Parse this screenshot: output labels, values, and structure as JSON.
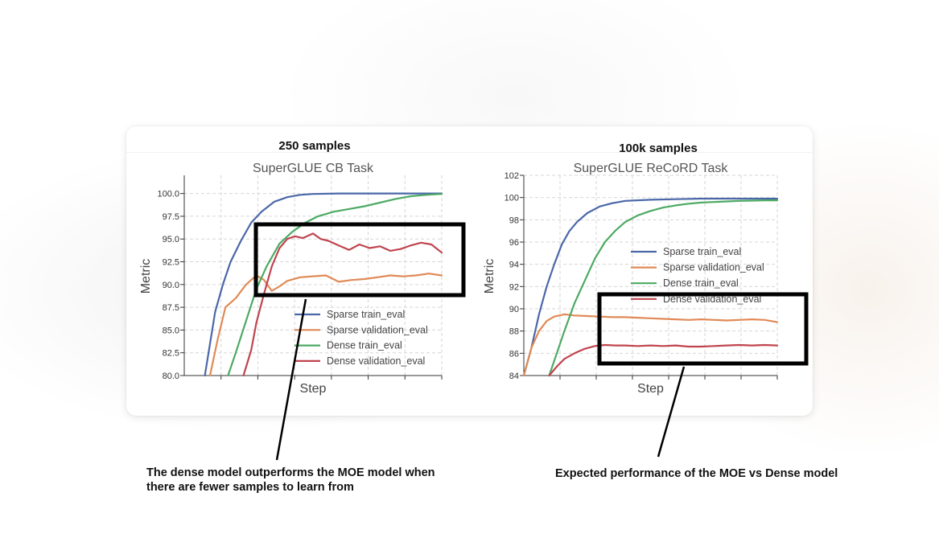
{
  "panels": [
    {
      "heading": "250 samples"
    },
    {
      "heading": "100k samples"
    }
  ],
  "captions": {
    "left": [
      "The dense model outperforms the MOE model when",
      "there are fewer samples to learn from"
    ],
    "right": "Expected performance of the MOE vs Dense model"
  },
  "colors": {
    "sparse_train": "#4a67a8",
    "sparse_validation": "#e08a56",
    "dense_train": "#4caa63",
    "dense_validation": "#c0444e",
    "highlight_box": "#000000"
  },
  "chart_data": [
    {
      "type": "line",
      "title": "SuperGLUE CB Task",
      "xlabel": "Step",
      "ylabel": "Metric",
      "ylim": [
        80.0,
        102.0
      ],
      "yticks": [
        "80.0",
        "82.5",
        "85.0",
        "87.5",
        "90.0",
        "92.5",
        "95.0",
        "97.5",
        "100.0"
      ],
      "xlim": [
        0,
        1
      ],
      "grid": true,
      "legend": "bottom-right",
      "series": [
        {
          "name": "Sparse train_eval",
          "color_key": "sparse_train",
          "x": [
            0.08,
            0.1,
            0.12,
            0.15,
            0.18,
            0.22,
            0.26,
            0.3,
            0.35,
            0.4,
            0.45,
            0.5,
            0.6,
            0.7,
            0.8,
            0.9,
            1.0
          ],
          "y": [
            80.0,
            83.5,
            87.0,
            90.0,
            92.5,
            94.8,
            96.8,
            98.0,
            99.1,
            99.6,
            99.85,
            99.95,
            100.0,
            100.0,
            100.0,
            100.0,
            100.0
          ]
        },
        {
          "name": "Sparse validation_eval",
          "color_key": "sparse_validation",
          "x": [
            0.1,
            0.13,
            0.16,
            0.2,
            0.24,
            0.28,
            0.31,
            0.34,
            0.37,
            0.4,
            0.45,
            0.5,
            0.55,
            0.6,
            0.65,
            0.7,
            0.75,
            0.8,
            0.85,
            0.9,
            0.95,
            1.0
          ],
          "y": [
            80.0,
            84.0,
            87.5,
            88.5,
            90.0,
            91.0,
            90.5,
            89.3,
            89.8,
            90.4,
            90.8,
            90.9,
            91.0,
            90.3,
            90.5,
            90.6,
            90.8,
            91.0,
            90.9,
            91.0,
            91.2,
            91.0
          ]
        },
        {
          "name": "Dense train_eval",
          "color_key": "dense_train",
          "x": [
            0.17,
            0.2,
            0.24,
            0.28,
            0.32,
            0.37,
            0.42,
            0.47,
            0.52,
            0.58,
            0.64,
            0.7,
            0.76,
            0.82,
            0.88,
            0.94,
            1.0
          ],
          "y": [
            80.0,
            82.5,
            86.0,
            89.5,
            92.0,
            94.5,
            95.8,
            96.8,
            97.5,
            98.0,
            98.3,
            98.6,
            99.0,
            99.4,
            99.7,
            99.85,
            99.95
          ]
        },
        {
          "name": "Dense validation_eval",
          "color_key": "dense_validation",
          "x": [
            0.23,
            0.26,
            0.28,
            0.31,
            0.34,
            0.37,
            0.4,
            0.43,
            0.46,
            0.5,
            0.53,
            0.56,
            0.6,
            0.64,
            0.68,
            0.72,
            0.76,
            0.8,
            0.84,
            0.88,
            0.92,
            0.96,
            1.0
          ],
          "y": [
            80.0,
            82.8,
            85.8,
            89.0,
            92.0,
            94.0,
            95.0,
            95.3,
            95.1,
            95.6,
            95.0,
            94.8,
            94.3,
            93.8,
            94.4,
            94.0,
            94.2,
            93.7,
            93.9,
            94.3,
            94.6,
            94.4,
            93.5
          ]
        }
      ]
    },
    {
      "type": "line",
      "title": "SuperGLUE ReCoRD Task",
      "xlabel": "Step",
      "ylabel": "Metric",
      "ylim": [
        84,
        102
      ],
      "yticks": [
        "84",
        "86",
        "88",
        "90",
        "92",
        "94",
        "96",
        "98",
        "100",
        "102"
      ],
      "xlim": [
        0,
        1
      ],
      "grid": true,
      "legend": "center-right",
      "series": [
        {
          "name": "Sparse train_eval",
          "color_key": "sparse_train",
          "x": [
            0.0,
            0.03,
            0.06,
            0.09,
            0.12,
            0.15,
            0.18,
            0.21,
            0.25,
            0.3,
            0.35,
            0.4,
            0.5,
            0.6,
            0.7,
            0.8,
            0.9,
            1.0
          ],
          "y": [
            84.0,
            86.5,
            89.5,
            92.0,
            94.0,
            95.8,
            97.0,
            97.8,
            98.6,
            99.2,
            99.5,
            99.7,
            99.8,
            99.85,
            99.9,
            99.9,
            99.9,
            99.9
          ]
        },
        {
          "name": "Sparse validation_eval",
          "color_key": "sparse_validation",
          "x": [
            0.0,
            0.03,
            0.06,
            0.09,
            0.12,
            0.16,
            0.2,
            0.25,
            0.3,
            0.35,
            0.4,
            0.45,
            0.5,
            0.55,
            0.6,
            0.65,
            0.7,
            0.75,
            0.8,
            0.85,
            0.9,
            0.95,
            1.0
          ],
          "y": [
            84.0,
            86.5,
            88.0,
            88.9,
            89.3,
            89.5,
            89.4,
            89.35,
            89.3,
            89.25,
            89.25,
            89.2,
            89.15,
            89.1,
            89.05,
            89.0,
            89.05,
            89.0,
            88.95,
            89.0,
            89.05,
            89.0,
            88.8
          ]
        },
        {
          "name": "Dense train_eval",
          "color_key": "dense_train",
          "x": [
            0.1,
            0.13,
            0.16,
            0.2,
            0.24,
            0.28,
            0.32,
            0.36,
            0.4,
            0.45,
            0.5,
            0.55,
            0.6,
            0.65,
            0.7,
            0.75,
            0.8,
            0.85,
            0.9,
            0.95,
            1.0
          ],
          "y": [
            84.0,
            86.0,
            88.0,
            90.5,
            92.5,
            94.5,
            96.0,
            97.0,
            97.8,
            98.4,
            98.8,
            99.1,
            99.3,
            99.45,
            99.55,
            99.6,
            99.65,
            99.7,
            99.72,
            99.75,
            99.75
          ]
        },
        {
          "name": "Dense validation_eval",
          "color_key": "dense_validation",
          "x": [
            0.1,
            0.13,
            0.16,
            0.2,
            0.24,
            0.28,
            0.32,
            0.36,
            0.4,
            0.45,
            0.5,
            0.55,
            0.6,
            0.65,
            0.7,
            0.75,
            0.8,
            0.85,
            0.9,
            0.95,
            1.0
          ],
          "y": [
            84.0,
            84.8,
            85.5,
            86.0,
            86.4,
            86.65,
            86.75,
            86.7,
            86.7,
            86.65,
            86.7,
            86.65,
            86.7,
            86.6,
            86.6,
            86.65,
            86.7,
            86.75,
            86.7,
            86.75,
            86.7
          ]
        }
      ]
    }
  ]
}
